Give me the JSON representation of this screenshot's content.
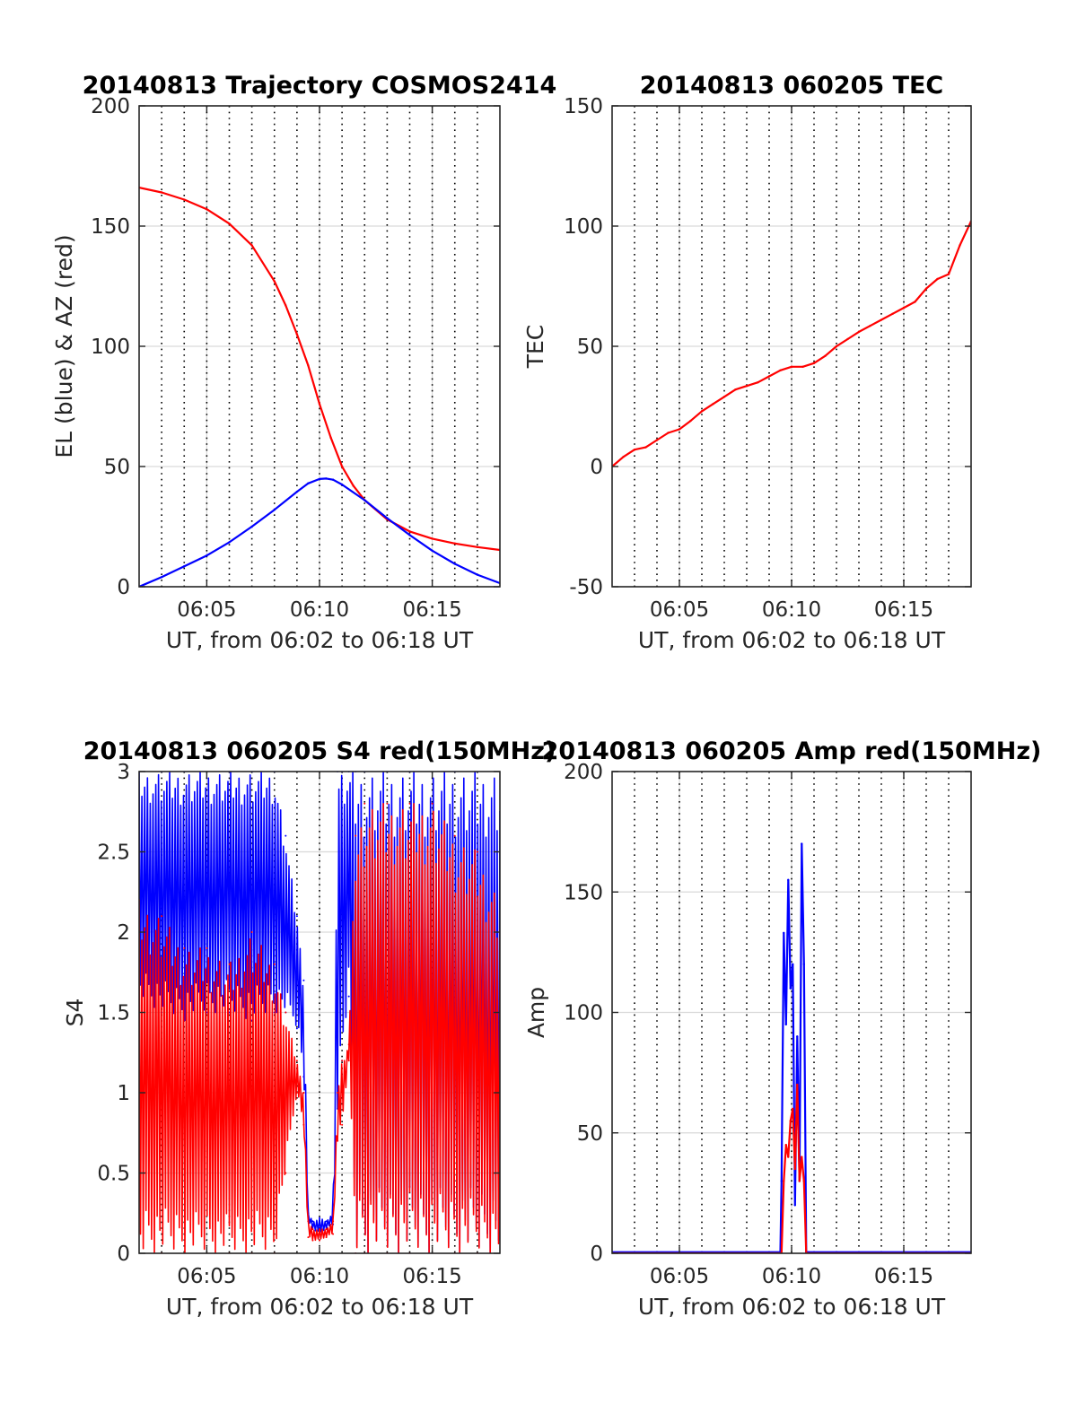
{
  "colors": {
    "el_series": "#0000ff",
    "az_series": "#ff0000",
    "grid": "#d9d9d9",
    "axis": "#262626"
  },
  "chart_data": [
    {
      "type": "line",
      "title": "20140813 Trajectory COSMOS2414",
      "xlabel": "UT, from 06:02 to 06:18 UT",
      "ylabel": "EL (blue) & AZ (red)",
      "x_unit": "minutes after 06:00 UT",
      "xlim": [
        2,
        18
      ],
      "ylim": [
        0,
        200
      ],
      "xticks": [
        5,
        10,
        15
      ],
      "xtick_labels": [
        "06:05",
        "06:10",
        "06:15"
      ],
      "yticks": [
        0,
        50,
        100,
        150,
        200
      ],
      "ytick_labels": [
        "0",
        "50",
        "100",
        "150",
        "200"
      ],
      "grid": true,
      "dotted_vlines": [
        3,
        4,
        5,
        6,
        7,
        8,
        9,
        10,
        11,
        12,
        13,
        14,
        15,
        16,
        17
      ],
      "series": [
        {
          "color": "#ff0000",
          "x": [
            2,
            3,
            4,
            5,
            6,
            7,
            8,
            8.5,
            9,
            9.5,
            10,
            10.5,
            11,
            11.5,
            12,
            13,
            14,
            15,
            16,
            17,
            18
          ],
          "values": [
            166,
            164,
            161,
            157,
            151,
            142,
            127,
            117,
            105,
            92,
            76,
            62,
            50,
            42,
            36,
            28,
            23,
            20,
            18,
            16.5,
            15.3
          ]
        },
        {
          "color": "#0000ff",
          "x": [
            2,
            3,
            4,
            5,
            6,
            7,
            8,
            9,
            9.5,
            10,
            10.3,
            10.6,
            11,
            12,
            13,
            14,
            15,
            16,
            17,
            18
          ],
          "values": [
            0,
            4,
            8.5,
            13,
            18.5,
            25,
            32,
            39.5,
            43,
            44.8,
            45,
            44.5,
            42.5,
            36,
            28.5,
            21.5,
            15,
            9.5,
            5,
            1.5
          ]
        }
      ]
    },
    {
      "type": "line",
      "title": "20140813 060205 TEC",
      "xlabel": "UT, from 06:02 to 06:18 UT",
      "ylabel": "TEC",
      "x_unit": "minutes after 06:00 UT",
      "xlim": [
        2,
        18
      ],
      "ylim": [
        -50,
        150
      ],
      "xticks": [
        5,
        10,
        15
      ],
      "xtick_labels": [
        "06:05",
        "06:10",
        "06:15"
      ],
      "yticks": [
        -50,
        0,
        50,
        100,
        150
      ],
      "ytick_labels": [
        "-50",
        "0",
        "50",
        "100",
        "150"
      ],
      "grid": true,
      "dotted_vlines": [
        3,
        4,
        5,
        6,
        7,
        8,
        9,
        10,
        11,
        12,
        13,
        14,
        15,
        16,
        17
      ],
      "series": [
        {
          "color": "#ff0000",
          "x": [
            2,
            2.5,
            3,
            3.5,
            4,
            4.5,
            5,
            5.5,
            6,
            6.5,
            7,
            7.5,
            8,
            8.5,
            9,
            9.5,
            10,
            10.5,
            11,
            11.5,
            12,
            12.5,
            13,
            13.5,
            14,
            14.5,
            15,
            15.5,
            16,
            16.5,
            17,
            17.5,
            18
          ],
          "values": [
            0,
            4,
            7,
            8,
            11,
            14,
            15.5,
            19,
            23,
            26,
            29,
            32,
            33.5,
            35,
            37.5,
            40,
            41.5,
            41.5,
            43,
            46,
            50,
            53,
            56,
            58.5,
            61,
            63.5,
            66,
            68.5,
            74,
            78,
            80,
            92,
            102
          ]
        }
      ]
    },
    {
      "type": "line",
      "title": "20140813 060205 S4 red(150MHz)",
      "xlabel": "UT, from 06:02 to 06:18 UT",
      "ylabel": "S4",
      "x_unit": "minutes after 06:00 UT",
      "xlim": [
        2,
        18
      ],
      "ylim": [
        0,
        3
      ],
      "xticks": [
        5,
        10,
        15
      ],
      "xtick_labels": [
        "06:05",
        "06:10",
        "06:15"
      ],
      "yticks": [
        0,
        0.5,
        1,
        1.5,
        2,
        2.5,
        3
      ],
      "ytick_labels": [
        "0",
        "0.5",
        "1",
        "1.5",
        "2",
        "2.5",
        "3"
      ],
      "grid": true,
      "dotted_vlines": [
        3,
        4,
        5,
        6,
        7,
        8,
        9,
        10,
        11,
        12,
        13,
        14,
        15,
        16,
        17
      ],
      "series": [
        {
          "color": "#0000ff",
          "note_points": "envelope of rapidly oscillating signal",
          "x": [
            2,
            3,
            4,
            5,
            6,
            7,
            8,
            8.5,
            9,
            9.3,
            9.5,
            9.7,
            10,
            10.3,
            10.6,
            10.8,
            11,
            11.3,
            11.6,
            12,
            13,
            14,
            15,
            16,
            17,
            18
          ],
          "min": [
            1.6,
            1.5,
            1.45,
            1.5,
            1.5,
            1.45,
            1.5,
            1.5,
            1.4,
            1.1,
            0.2,
            0.15,
            0.12,
            0.15,
            0.18,
            0.9,
            1.2,
            1.6,
            0.0,
            0.0,
            0.0,
            0.0,
            0.0,
            0.0,
            0.0,
            0.0
          ],
          "max": [
            3,
            3,
            3,
            3,
            3,
            3,
            3,
            2.6,
            2.1,
            1.7,
            0.25,
            0.2,
            0.22,
            0.2,
            0.25,
            3,
            3,
            3,
            3,
            3,
            3,
            3,
            3,
            3,
            3,
            3
          ]
        },
        {
          "color": "#ff0000",
          "x": [
            2,
            3,
            4,
            5,
            6,
            7,
            8,
            8.5,
            9,
            9.3,
            9.5,
            9.7,
            10,
            10.3,
            10.6,
            10.8,
            11,
            11.3,
            11.6,
            12,
            13,
            14,
            15,
            16,
            17,
            18
          ],
          "min": [
            0,
            0,
            0,
            0,
            0,
            0,
            0,
            0.5,
            1.0,
            0.8,
            0.1,
            0.08,
            0.08,
            0.1,
            0.12,
            0.7,
            0.8,
            1.2,
            0,
            0,
            0,
            0,
            0,
            0,
            0,
            0
          ],
          "max": [
            2.2,
            2.1,
            1.9,
            1.9,
            1.8,
            2.0,
            1.8,
            1.5,
            1.2,
            1.0,
            0.2,
            0.15,
            0.15,
            0.15,
            0.2,
            1.0,
            1.2,
            1.3,
            2.6,
            2.8,
            2.8,
            2.8,
            2.8,
            2.6,
            2.5,
            2.2
          ]
        }
      ]
    },
    {
      "type": "line",
      "title": "20140813 060205 Amp red(150MHz)",
      "xlabel": "UT, from 06:02 to 06:18 UT",
      "ylabel": "Amp",
      "x_unit": "minutes after 06:00 UT",
      "xlim": [
        2,
        18
      ],
      "ylim": [
        0,
        200
      ],
      "xticks": [
        5,
        10,
        15
      ],
      "xtick_labels": [
        "06:05",
        "06:10",
        "06:15"
      ],
      "yticks": [
        0,
        50,
        100,
        150,
        200
      ],
      "ytick_labels": [
        "0",
        "50",
        "100",
        "150",
        "200"
      ],
      "grid": true,
      "dotted_vlines": [
        3,
        4,
        5,
        6,
        7,
        8,
        9,
        10,
        11,
        12,
        13,
        14,
        15,
        16,
        17
      ],
      "series": [
        {
          "color": "#0000ff",
          "x": [
            2,
            9.5,
            9.55,
            9.65,
            9.75,
            9.85,
            9.95,
            10.05,
            10.15,
            10.25,
            10.35,
            10.45,
            10.55,
            10.65,
            10.75,
            18
          ],
          "values": [
            0.5,
            0.5,
            30,
            133,
            95,
            155,
            110,
            120,
            20,
            90,
            30,
            170,
            120,
            0.5,
            0.5,
            0.5
          ]
        },
        {
          "color": "#ff0000",
          "x": [
            2,
            9.55,
            9.65,
            9.75,
            9.85,
            9.95,
            10.05,
            10.15,
            10.25,
            10.35,
            10.45,
            10.55,
            10.65,
            18
          ],
          "values": [
            0,
            0,
            30,
            45,
            40,
            55,
            60,
            35,
            70,
            30,
            40,
            30,
            0,
            0
          ]
        }
      ]
    }
  ]
}
